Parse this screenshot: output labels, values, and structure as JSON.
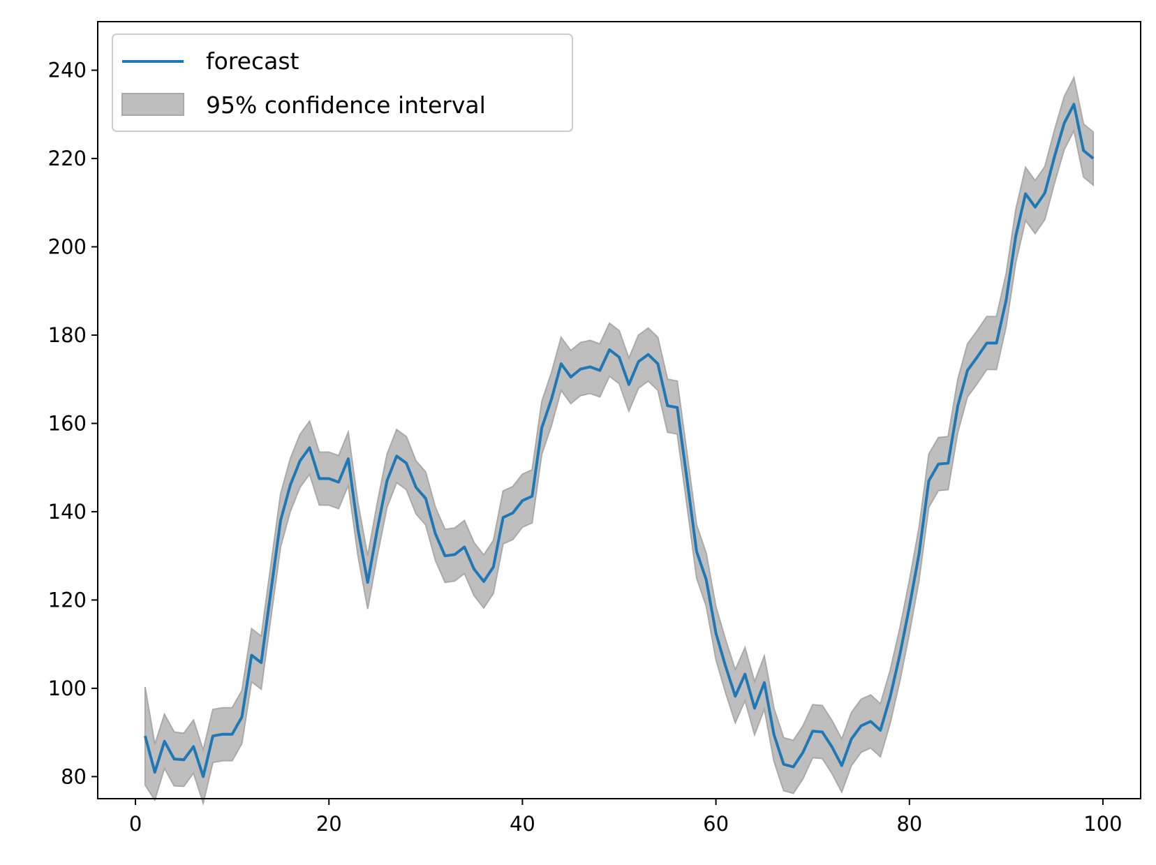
{
  "chart_data": {
    "type": "line",
    "x": [
      1,
      2,
      3,
      4,
      5,
      6,
      7,
      8,
      9,
      10,
      11,
      12,
      13,
      14,
      15,
      16,
      17,
      18,
      19,
      20,
      21,
      22,
      23,
      24,
      25,
      26,
      27,
      28,
      29,
      30,
      31,
      32,
      33,
      34,
      35,
      36,
      37,
      38,
      39,
      40,
      41,
      42,
      43,
      44,
      45,
      46,
      47,
      48,
      49,
      50,
      51,
      52,
      53,
      54,
      55,
      56,
      57,
      58,
      59,
      60,
      61,
      62,
      63,
      64,
      65,
      66,
      67,
      68,
      69,
      70,
      71,
      72,
      73,
      74,
      75,
      76,
      77,
      78,
      79,
      80,
      81,
      82,
      83,
      84,
      85,
      86,
      87,
      88,
      89,
      90,
      91,
      92,
      93,
      94,
      95,
      96,
      97,
      98,
      99
    ],
    "series": [
      {
        "name": "forecast",
        "color": "#1f77b4",
        "values": [
          89.2,
          81.0,
          88.0,
          84.0,
          83.8,
          86.8,
          80.0,
          89.2,
          89.6,
          89.6,
          93.5,
          107.5,
          105.8,
          122.0,
          138.0,
          146.0,
          151.5,
          154.5,
          147.5,
          147.5,
          146.7,
          152.0,
          136.0,
          124.0,
          136.0,
          147.0,
          152.6,
          151.0,
          145.5,
          143.0,
          135.0,
          130.0,
          130.3,
          132.0,
          127.0,
          124.2,
          127.5,
          138.7,
          139.7,
          142.5,
          143.5,
          159.0,
          165.5,
          173.5,
          170.5,
          172.3,
          172.8,
          172.0,
          176.7,
          175.0,
          168.8,
          174.0,
          175.6,
          173.5,
          164.0,
          163.6,
          147.5,
          131.0,
          124.6,
          112.5,
          105.0,
          98.2,
          103.2,
          95.5,
          101.3,
          89.5,
          82.8,
          82.2,
          85.5,
          90.3,
          90.1,
          86.7,
          82.5,
          88.5,
          91.5,
          92.5,
          90.5,
          98.0,
          107.5,
          118.5,
          130.5,
          147.0,
          150.8,
          151.0,
          164.0,
          172.0,
          175.0,
          178.2,
          178.2,
          188.0,
          202.5,
          212.0,
          209.0,
          212.2,
          220.5,
          228.0,
          232.3,
          221.8,
          220.0
        ]
      }
    ],
    "band": {
      "name": "95% confidence interval",
      "color": "#bebebe",
      "edge_color": "#a9a9a9",
      "half_width": [
        11.1,
        6.3,
        6.1,
        6.1,
        6.0,
        6.0,
        6.0,
        6.0,
        6.0,
        6.0,
        6.0,
        6.0,
        6.0,
        6.0,
        6.0,
        6.0,
        6.0,
        6.0,
        6.0,
        6.0,
        6.0,
        6.0,
        6.0,
        6.0,
        6.0,
        6.0,
        6.0,
        6.0,
        6.0,
        6.0,
        6.0,
        6.0,
        6.0,
        6.0,
        6.0,
        6.0,
        6.0,
        6.0,
        6.0,
        6.0,
        6.0,
        6.0,
        6.0,
        6.0,
        6.0,
        6.0,
        6.0,
        6.0,
        6.0,
        6.0,
        6.0,
        6.0,
        6.0,
        6.0,
        6.0,
        6.0,
        6.0,
        6.0,
        6.0,
        6.0,
        6.0,
        6.0,
        6.0,
        6.0,
        6.0,
        6.0,
        6.0,
        6.0,
        6.0,
        6.0,
        6.0,
        6.0,
        6.0,
        6.0,
        6.0,
        6.0,
        6.0,
        6.0,
        6.0,
        6.0,
        6.0,
        6.0,
        6.0,
        6.0,
        6.0,
        6.0,
        6.0,
        6.0,
        6.0,
        6.0,
        6.0,
        6.0,
        6.0,
        6.0,
        6.0,
        6.0,
        6.0,
        6.0,
        6.0
      ]
    },
    "xlim": [
      -3.9,
      103.9
    ],
    "ylim": [
      75,
      251
    ],
    "xticks": [
      0,
      20,
      40,
      60,
      80,
      100
    ],
    "yticks": [
      80,
      100,
      120,
      140,
      160,
      180,
      200,
      220,
      240
    ],
    "legend_position": "upper-left",
    "grid": false,
    "title": "",
    "xlabel": "",
    "ylabel": ""
  }
}
